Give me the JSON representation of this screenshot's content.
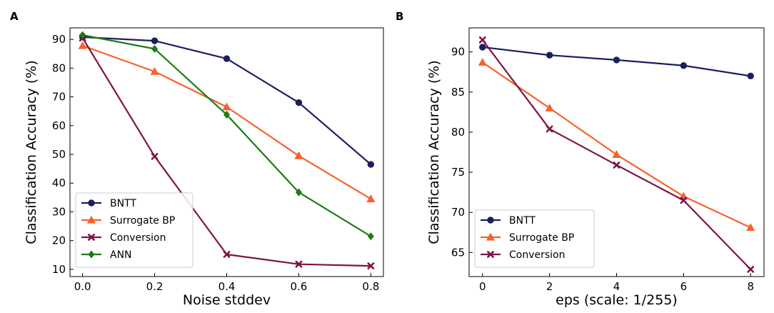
{
  "colors": {
    "BNTT": "#1b1f5e",
    "Surrogate BP": "#f5622d",
    "Conversion": "#7e1446",
    "ANN": "#1a7d14"
  },
  "chart_data": [
    {
      "panel_label": "A",
      "type": "line",
      "xlabel": "Noise stddev",
      "ylabel": "Classification Accuracy (%)",
      "x": [
        0.0,
        0.2,
        0.4,
        0.6,
        0.8
      ],
      "xlim": [
        -0.035,
        0.835
      ],
      "ylim": [
        7.5,
        94
      ],
      "xticks": [
        0.0,
        0.2,
        0.4,
        0.6,
        0.8
      ],
      "xtick_labels": [
        "0.0",
        "0.2",
        "0.4",
        "0.6",
        "0.8"
      ],
      "yticks": [
        10,
        20,
        30,
        40,
        50,
        60,
        70,
        80,
        90
      ],
      "ytick_labels": [
        "10",
        "20",
        "30",
        "40",
        "50",
        "60",
        "70",
        "80",
        "90"
      ],
      "legend_position": "lower-left",
      "series": [
        {
          "name": "BNTT",
          "marker": "circle",
          "values": [
            90.8,
            89.5,
            83.3,
            68.0,
            46.5
          ]
        },
        {
          "name": "Surrogate BP",
          "marker": "triangle",
          "values": [
            87.8,
            78.8,
            66.5,
            49.5,
            34.5
          ]
        },
        {
          "name": "Conversion",
          "marker": "x",
          "values": [
            90.5,
            49.3,
            15.2,
            11.8,
            11.2
          ]
        },
        {
          "name": "ANN",
          "marker": "diamond",
          "values": [
            91.5,
            86.7,
            63.8,
            36.8,
            21.5
          ]
        }
      ]
    },
    {
      "panel_label": "B",
      "type": "line",
      "xlabel": "eps (scale: 1/255)",
      "ylabel": "Classification Accuracy (%)",
      "x": [
        0,
        2,
        4,
        6,
        8
      ],
      "xlim": [
        -0.4,
        8.4
      ],
      "ylim": [
        62,
        93
      ],
      "xticks": [
        0,
        2,
        4,
        6,
        8
      ],
      "xtick_labels": [
        "0",
        "2",
        "4",
        "6",
        "8"
      ],
      "yticks": [
        65,
        70,
        75,
        80,
        85,
        90
      ],
      "ytick_labels": [
        "65",
        "70",
        "75",
        "80",
        "85",
        "90"
      ],
      "legend_position": "lower-left",
      "series": [
        {
          "name": "BNTT",
          "marker": "circle",
          "values": [
            90.6,
            89.6,
            89.0,
            88.3,
            87.0
          ]
        },
        {
          "name": "Surrogate BP",
          "marker": "triangle",
          "values": [
            88.7,
            83.0,
            77.2,
            72.0,
            68.1
          ]
        },
        {
          "name": "Conversion",
          "marker": "x",
          "values": [
            91.5,
            80.4,
            75.9,
            71.5,
            62.9
          ]
        }
      ]
    }
  ]
}
